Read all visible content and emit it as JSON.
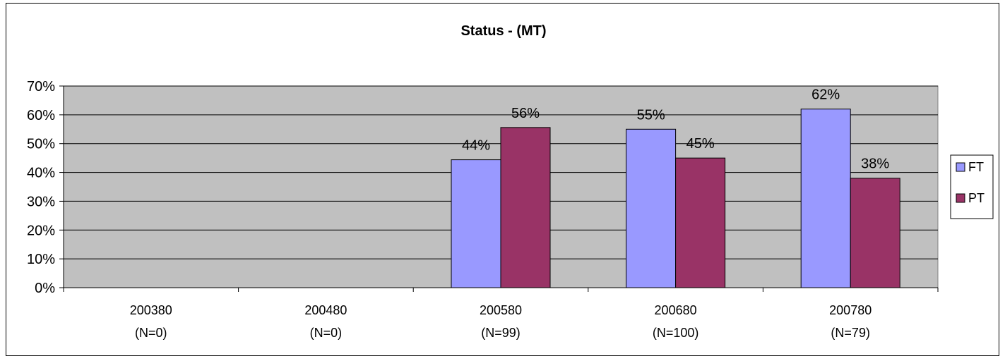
{
  "chart_data": {
    "type": "bar",
    "title": "Status -  (MT)",
    "categories": [
      [
        "200380",
        "(N=0)"
      ],
      [
        "200480",
        "(N=0)"
      ],
      [
        "200580",
        "(N=99)"
      ],
      [
        "200680",
        "(N=100)"
      ],
      [
        "200780",
        "(N=79)"
      ]
    ],
    "series": [
      {
        "name": "FT",
        "color": "#9999ff",
        "values": [
          null,
          null,
          44.4,
          55,
          62
        ],
        "labels": [
          "",
          "",
          "44%",
          "55%",
          "62%"
        ]
      },
      {
        "name": "PT",
        "color": "#993366",
        "values": [
          null,
          null,
          55.6,
          45,
          38
        ],
        "labels": [
          "",
          "",
          "56%",
          "45%",
          "38%"
        ]
      }
    ],
    "ylim": [
      0,
      70
    ],
    "yticks": [
      0,
      10,
      20,
      30,
      40,
      50,
      60,
      70
    ],
    "ytick_labels": [
      "0%",
      "10%",
      "20%",
      "30%",
      "40%",
      "50%",
      "60%",
      "70%"
    ],
    "plot_background": "#c0c0c0",
    "grid": true,
    "legend_position": "right"
  }
}
